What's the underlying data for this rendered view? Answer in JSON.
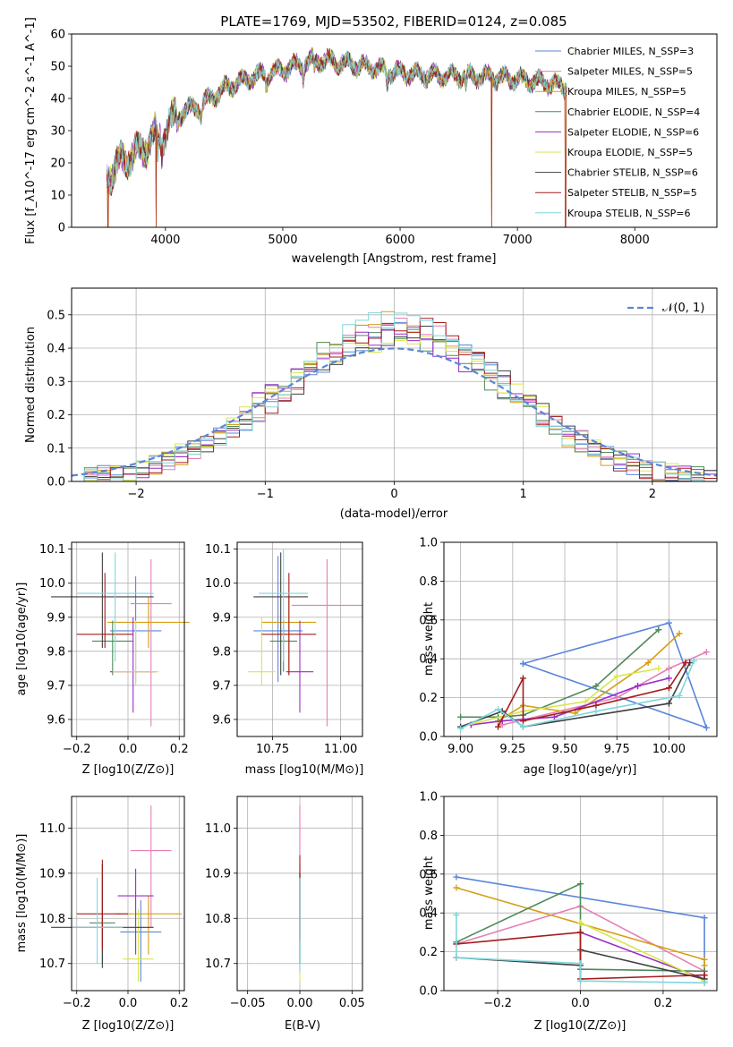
{
  "figure": {
    "title": "PLATE=1769, MJD=53502, FIBERID=0124, z=0.085",
    "series_names": [
      "Chabrier MILES, N_SSP=3",
      "Salpeter MILES, N_SSP=5",
      "Kroupa MILES, N_SSP=5",
      "Chabrier ELODIE, N_SSP=4",
      "Salpeter ELODIE, N_SSP=6",
      "Kroupa ELODIE, N_SSP=5",
      "Chabrier STELIB, N_SSP=6",
      "Salpeter STELIB, N_SSP=5",
      "Kroupa STELIB, N_SSP=6"
    ],
    "series_colors": [
      "#5b86d8",
      "#e57fb5",
      "#d4a017",
      "#4e8a5a",
      "#9a2cc9",
      "#d9e64a",
      "#404040",
      "#a51c1c",
      "#7fd6dc"
    ]
  },
  "chart_data": [
    {
      "id": "spectrum",
      "type": "line",
      "xlabel": "wavelength [Angstrom, rest frame]",
      "ylabel": "Flux [f_λ10^-17 erg cm^-2 s^-1 A^-1]",
      "xlim": [
        3200,
        8700
      ],
      "ylim": [
        0,
        60
      ],
      "xticks": [
        4000,
        5000,
        6000,
        7000,
        8000
      ],
      "yticks": [
        0,
        10,
        20,
        30,
        40,
        50,
        60
      ],
      "legend": "top-right",
      "continuum": {
        "x": [
          3500,
          3600,
          3800,
          3900,
          4000,
          4100,
          4300,
          4500,
          4700,
          4900,
          5100,
          5300,
          5500,
          5700,
          6000,
          6300,
          6600,
          7000,
          7200,
          7400
        ],
        "y": [
          16,
          20,
          24,
          28,
          30,
          35,
          38,
          43,
          46,
          48,
          50,
          52,
          51,
          50,
          48,
          47,
          47,
          46,
          45,
          44
        ]
      },
      "spikes": [
        {
          "x": 3510,
          "y": 0
        },
        {
          "x": 3920,
          "y": 0
        },
        {
          "x": 6780,
          "y": 0
        },
        {
          "x": 7410,
          "y": 0
        }
      ]
    },
    {
      "id": "residuals",
      "type": "line",
      "xlabel": "(data-model)/error",
      "ylabel": "Normed distribution",
      "xlim": [
        -2.5,
        2.5
      ],
      "ylim": [
        0,
        0.58
      ],
      "xticks": [
        -2,
        -1,
        0,
        1,
        2
      ],
      "yticks": [
        0.0,
        0.1,
        0.2,
        0.3,
        0.4,
        0.5
      ],
      "grid": true,
      "legend_label": "𝒩(0, 1)",
      "bin_width": 0.1
    },
    {
      "id": "age_vs_Z",
      "type": "scatter",
      "xlabel": "Z [log10(Z/Z⊙)]",
      "ylabel": "age [log10(age/yr)]",
      "xlim": [
        -0.22,
        0.22
      ],
      "ylim": [
        9.55,
        10.12
      ],
      "xticks": [
        -0.2,
        0.0,
        0.2
      ],
      "yticks": [
        9.6,
        9.7,
        9.8,
        9.9,
        10.0,
        10.1
      ],
      "grid": true,
      "points": [
        {
          "x": 0.03,
          "y": 9.86,
          "xerr": 0.1,
          "ym": 9.71,
          "yp": 10.02
        },
        {
          "x": 0.09,
          "y": 9.94,
          "xerr": 0.08,
          "ym": 9.58,
          "yp": 10.07
        },
        {
          "x": 0.08,
          "y": 9.885,
          "xerr": 0.16,
          "ym": 9.81,
          "yp": 9.96
        },
        {
          "x": -0.06,
          "y": 9.83,
          "xerr": 0.08,
          "ym": 9.73,
          "yp": 9.89
        },
        {
          "x": 0.02,
          "y": 9.74,
          "xerr": 0.09,
          "ym": 9.62,
          "yp": 9.9
        },
        {
          "x": 0.03,
          "y": 9.74,
          "xerr": 0.09,
          "ym": 9.7,
          "yp": 9.89
        },
        {
          "x": -0.1,
          "y": 9.96,
          "xerr": 0.2,
          "ym": 9.81,
          "yp": 10.09
        },
        {
          "x": -0.09,
          "y": 9.85,
          "xerr": 0.11,
          "ym": 9.81,
          "yp": 10.03
        },
        {
          "x": -0.05,
          "y": 9.97,
          "xerr": 0.15,
          "ym": 9.77,
          "yp": 10.09
        }
      ]
    },
    {
      "id": "age_vs_mass",
      "type": "scatter",
      "xlabel": "mass [log10(M/M⊙)]",
      "ylabel": "",
      "xlim": [
        10.62,
        11.08
      ],
      "ylim": [
        9.55,
        10.12
      ],
      "xticks": [
        10.75,
        11.0
      ],
      "yticks": [
        9.6,
        9.7,
        9.8,
        9.9,
        10.0,
        10.1
      ],
      "grid": true,
      "points": [
        {
          "x": 10.77,
          "y": 9.86,
          "xerr": 0.09,
          "ym": 9.71,
          "yp": 10.08
        },
        {
          "x": 10.95,
          "y": 9.935,
          "xerr": 0.13,
          "ym": 9.58,
          "yp": 10.07
        },
        {
          "x": 10.81,
          "y": 9.885,
          "xerr": 0.1,
          "ym": 9.73,
          "yp": 9.96
        },
        {
          "x": 10.79,
          "y": 9.83,
          "xerr": 0.05,
          "ym": 9.74,
          "yp": 9.89
        },
        {
          "x": 10.85,
          "y": 9.74,
          "xerr": 0.05,
          "ym": 9.62,
          "yp": 9.89
        },
        {
          "x": 10.71,
          "y": 9.74,
          "xerr": 0.05,
          "ym": 9.7,
          "yp": 9.9
        },
        {
          "x": 10.78,
          "y": 9.96,
          "xerr": 0.1,
          "ym": 9.73,
          "yp": 10.09
        },
        {
          "x": 10.81,
          "y": 9.85,
          "xerr": 0.1,
          "ym": 9.73,
          "yp": 10.03
        },
        {
          "x": 10.79,
          "y": 9.97,
          "xerr": 0.09,
          "ym": 9.77,
          "yp": 10.1
        }
      ]
    },
    {
      "id": "massweight_vs_age",
      "type": "line",
      "xlabel": "age [log10(age/yr)]",
      "ylabel": "mass weight",
      "xlim": [
        8.92,
        10.23
      ],
      "ylim": [
        0,
        1
      ],
      "xticks": [
        9.0,
        9.25,
        9.5,
        9.75,
        10.0
      ],
      "xtick_labels": [
        "9.00",
        "9.25",
        "9.50",
        "9.75",
        "10.00"
      ],
      "yticks": [
        0.0,
        0.2,
        0.4,
        0.6,
        0.8,
        1.0
      ],
      "grid": true,
      "series": [
        {
          "x": [
            9.3,
            10.0,
            10.18,
            9.3
          ],
          "y": [
            0.375,
            0.585,
            0.045,
            0.375
          ]
        },
        {
          "x": [
            9.2,
            9.75,
            9.85,
            10.0,
            10.18
          ],
          "y": [
            0.06,
            0.2,
            0.26,
            0.35,
            0.435
          ]
        },
        {
          "x": [
            9.18,
            9.3,
            9.55,
            9.9,
            10.05
          ],
          "y": [
            0.08,
            0.16,
            0.12,
            0.38,
            0.53
          ]
        },
        {
          "x": [
            9.0,
            9.18,
            9.3,
            9.65,
            9.95,
            9.95
          ],
          "y": [
            0.1,
            0.1,
            0.11,
            0.26,
            0.55,
            0.55
          ]
        },
        {
          "x": [
            9.05,
            9.2,
            9.45,
            9.85,
            10.0
          ],
          "y": [
            0.06,
            0.08,
            0.1,
            0.26,
            0.3
          ]
        },
        {
          "x": [
            9.0,
            9.3,
            9.6,
            9.75,
            9.95
          ],
          "y": [
            0.05,
            0.13,
            0.18,
            0.31,
            0.35
          ]
        },
        {
          "x": [
            9.0,
            9.2,
            9.3,
            10.0,
            10.1
          ],
          "y": [
            0.05,
            0.13,
            0.05,
            0.17,
            0.38
          ]
        },
        {
          "x": [
            9.18,
            9.3,
            9.3,
            9.65,
            10.0,
            10.08
          ],
          "y": [
            0.05,
            0.3,
            0.08,
            0.16,
            0.25,
            0.38
          ]
        },
        {
          "x": [
            9.0,
            9.18,
            9.3,
            9.65,
            10.05,
            10.12
          ],
          "y": [
            0.04,
            0.14,
            0.05,
            0.13,
            0.21,
            0.39
          ]
        }
      ]
    },
    {
      "id": "mass_vs_Z",
      "type": "scatter",
      "xlabel": "Z [log10(Z/Z⊙)]",
      "ylabel": "mass [log10(M/M⊙)]",
      "xlim": [
        -0.22,
        0.22
      ],
      "ylim": [
        10.64,
        11.07
      ],
      "xticks": [
        -0.2,
        0.0,
        0.2
      ],
      "yticks": [
        10.7,
        10.8,
        10.9,
        11.0
      ],
      "grid": true,
      "points": [
        {
          "x": 0.05,
          "y": 10.77,
          "xerr": 0.08,
          "ym": 10.66,
          "yp": 10.84
        },
        {
          "x": 0.09,
          "y": 10.95,
          "xerr": 0.08,
          "ym": 10.78,
          "yp": 11.05
        },
        {
          "x": 0.08,
          "y": 10.81,
          "xerr": 0.13,
          "ym": 10.72,
          "yp": 10.85
        },
        {
          "x": -0.1,
          "y": 10.79,
          "xerr": 0.05,
          "ym": 10.7,
          "yp": 10.92
        },
        {
          "x": 0.03,
          "y": 10.85,
          "xerr": 0.07,
          "ym": 10.72,
          "yp": 10.91
        },
        {
          "x": 0.04,
          "y": 10.71,
          "xerr": 0.06,
          "ym": 10.66,
          "yp": 10.82
        },
        {
          "x": -0.1,
          "y": 10.78,
          "xerr": 0.2,
          "ym": 10.69,
          "yp": 10.92
        },
        {
          "x": -0.1,
          "y": 10.81,
          "xerr": 0.1,
          "ym": 10.73,
          "yp": 10.93
        },
        {
          "x": -0.12,
          "y": 10.78,
          "xerr": 0.1,
          "ym": 10.7,
          "yp": 10.89
        }
      ]
    },
    {
      "id": "mass_vs_ebv",
      "type": "scatter",
      "xlabel": "E(B-V)",
      "ylabel": "",
      "xlim": [
        -0.06,
        0.06
      ],
      "ylim": [
        10.64,
        11.07
      ],
      "xticks": [
        -0.05,
        0.0,
        0.05
      ],
      "xtick_labels": [
        "−0.05",
        "0.00",
        "0.05"
      ],
      "yticks": [
        10.7,
        10.8,
        10.9,
        11.0
      ],
      "grid": true,
      "points": [
        {
          "x": 0.0,
          "y": 10.8,
          "xerr": 0.0,
          "ym": 10.7,
          "yp": 10.9
        },
        {
          "x": 0.0,
          "y": 10.95,
          "xerr": 0.0,
          "ym": 10.8,
          "yp": 11.05
        },
        {
          "x": 0.0,
          "y": 10.8,
          "xerr": 0.0,
          "ym": 10.7,
          "yp": 10.9
        },
        {
          "x": 0.0,
          "y": 10.8,
          "xerr": 0.0,
          "ym": 10.7,
          "yp": 10.9
        },
        {
          "x": 0.0,
          "y": 10.85,
          "xerr": 0.0,
          "ym": 10.75,
          "yp": 10.92
        },
        {
          "x": 0.0,
          "y": 10.72,
          "xerr": 0.0,
          "ym": 10.66,
          "yp": 10.82
        },
        {
          "x": 0.0,
          "y": 10.79,
          "xerr": 0.0,
          "ym": 10.7,
          "yp": 10.9
        },
        {
          "x": 0.0,
          "y": 10.85,
          "xerr": 0.0,
          "ym": 10.75,
          "yp": 10.94
        },
        {
          "x": 0.0,
          "y": 10.78,
          "xerr": 0.0,
          "ym": 10.68,
          "yp": 10.89
        }
      ]
    },
    {
      "id": "massweight_vs_Z",
      "type": "line",
      "xlabel": "Z [log10(Z/Z⊙)]",
      "ylabel": "mass weight",
      "xlim": [
        -0.33,
        0.33
      ],
      "ylim": [
        0,
        1
      ],
      "xticks": [
        -0.2,
        0.0,
        0.2
      ],
      "xtick_labels": [
        "−0.2",
        "0.0",
        "0.2"
      ],
      "yticks": [
        0.0,
        0.2,
        0.4,
        0.6,
        0.8,
        1.0
      ],
      "grid": true,
      "series": [
        {
          "x": [
            -0.3,
            0.3,
            0.3
          ],
          "y": [
            0.585,
            0.375,
            0.04
          ]
        },
        {
          "x": [
            -0.3,
            0.0,
            0.3,
            0.3
          ],
          "y": [
            0.24,
            0.435,
            0.1,
            0.05
          ]
        },
        {
          "x": [
            -0.3,
            0.3,
            0.3
          ],
          "y": [
            0.53,
            0.16,
            0.13
          ]
        },
        {
          "x": [
            -0.3,
            0.0,
            0.0,
            0.3
          ],
          "y": [
            0.25,
            0.55,
            0.11,
            0.1
          ]
        },
        {
          "x": [
            0.0,
            0.3,
            0.3
          ],
          "y": [
            0.3,
            0.06,
            0.08
          ]
        },
        {
          "x": [
            0.0,
            0.3
          ],
          "y": [
            0.35,
            0.05
          ]
        },
        {
          "x": [
            -0.3,
            0.0,
            0.0,
            0.3
          ],
          "y": [
            0.17,
            0.13,
            0.21,
            0.06
          ]
        },
        {
          "x": [
            -0.3,
            0.0,
            0.0,
            0.3
          ],
          "y": [
            0.24,
            0.3,
            0.06,
            0.08
          ]
        },
        {
          "x": [
            -0.3,
            -0.3,
            0.0,
            0.0,
            0.3
          ],
          "y": [
            0.39,
            0.17,
            0.14,
            0.05,
            0.04
          ]
        }
      ]
    }
  ]
}
